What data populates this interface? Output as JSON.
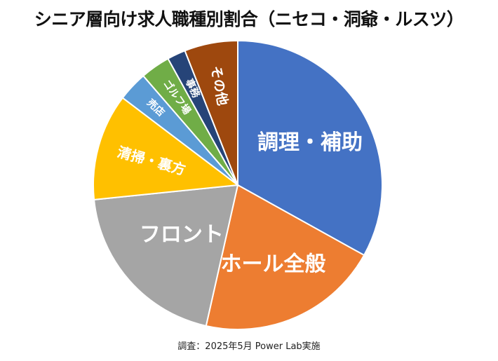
{
  "title": "シニア層向け求人職種別割合（ニセコ・洞爺・ルスツ）",
  "source": "調査：2025年5月 Power Lab実施",
  "chart_data": {
    "type": "pie",
    "title": "シニア層向け求人職種別割合（ニセコ・洞爺・ルスツ）",
    "start": "12 o'clock, clockwise",
    "slices": [
      {
        "label": "調理・補助",
        "value": 33.8,
        "color": "#4472C4"
      },
      {
        "label": "ホール全般",
        "value": 20.9,
        "color": "#ED7D31"
      },
      {
        "label": "フロント",
        "value": 20.3,
        "color": "#A5A5A5"
      },
      {
        "label": "清掃・裏方",
        "value": 12.2,
        "color": "#FFC000"
      },
      {
        "label": "売店",
        "value": 3.4,
        "color": "#5B9BD5"
      },
      {
        "label": "ゴルフ場",
        "value": 3.4,
        "color": "#70AD47"
      },
      {
        "label": "事務",
        "value": 2.1,
        "color": "#264478"
      },
      {
        "label": "その他",
        "value": 6.1,
        "color": "#9E480E"
      }
    ]
  }
}
